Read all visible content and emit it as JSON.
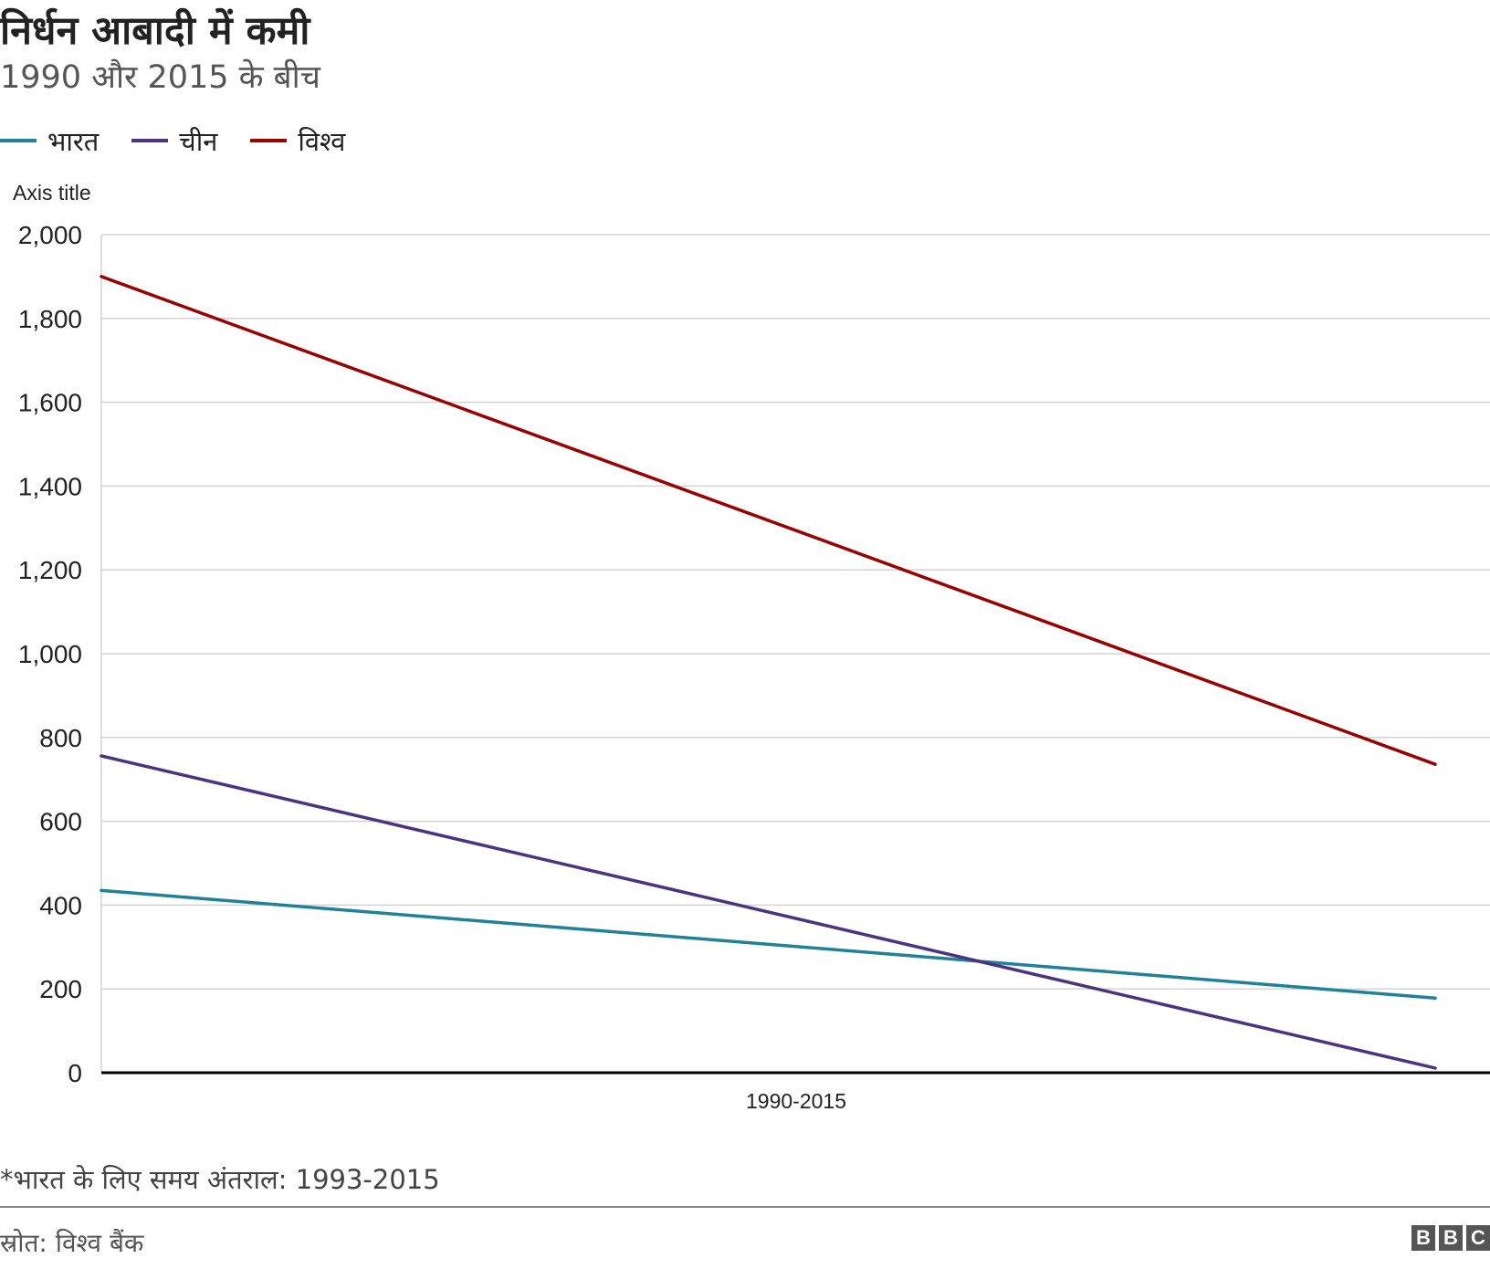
{
  "header": {
    "title": "निर्धन आबादी में कमी",
    "subtitle": "1990 और 2015 के बीच"
  },
  "legend": [
    {
      "label": "भारत",
      "color": "#1f8298"
    },
    {
      "label": "चीन",
      "color": "#4b3380"
    },
    {
      "label": "विश्व",
      "color": "#990000"
    }
  ],
  "colors": {
    "grid": "#d3d3d3",
    "baseline": "#000000",
    "bbc_logo": "#555555"
  },
  "chart_data": {
    "type": "line",
    "title": "निर्धन आबादी में कमी",
    "subtitle": "1990 और 2015 के बीच",
    "ylabel": "Axis title",
    "xlabel": "",
    "x_tick_label": "1990-2015",
    "ylim": [
      0,
      2000
    ],
    "yticks": [
      0,
      200,
      400,
      600,
      800,
      1000,
      1200,
      1400,
      1600,
      1800,
      2000
    ],
    "ytick_labels": [
      "0",
      "200",
      "400",
      "600",
      "800",
      "1,000",
      "1,200",
      "1,400",
      "1,600",
      "1,800",
      "2,000"
    ],
    "grid": true,
    "legend_position": "top-left",
    "x": [
      "1990",
      "2015"
    ],
    "series": [
      {
        "name": "भारत",
        "values": [
          435,
          178
        ]
      },
      {
        "name": "चीन",
        "values": [
          756,
          11
        ]
      },
      {
        "name": "विश्व",
        "values": [
          1900,
          736
        ]
      }
    ]
  },
  "footnote": "*भारत के लिए समय अंतराल: 1993-2015",
  "source": "स्रोत: विश्व बैंक",
  "logo": {
    "letters": [
      "B",
      "B",
      "C"
    ]
  }
}
